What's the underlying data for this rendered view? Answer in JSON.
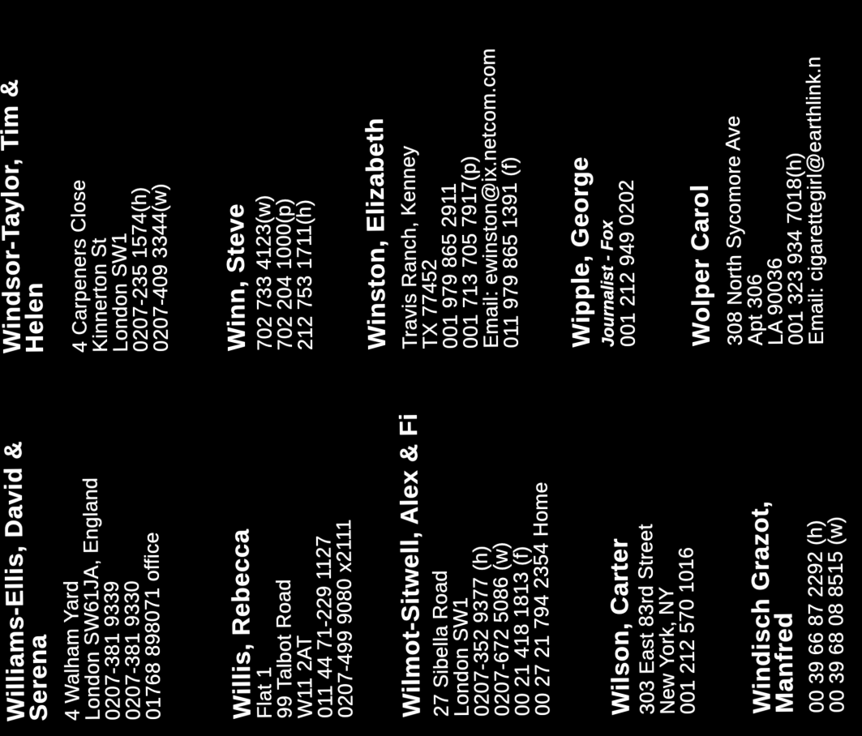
{
  "page": {
    "description": "Scanned address book page, white text on black, rotated 90 degrees counter-clockwise",
    "background_color": "#000000",
    "text_color": "#ffffff",
    "rotation_degrees": -90
  },
  "contacts": [
    {
      "name_line1": "Williams-Ellis, David &",
      "name_line2": "Serena",
      "details": [
        "4 Walham Yard",
        "London SW61JA, England",
        "0207-381 9339",
        "0207-381 9330",
        "01768 898071 office"
      ]
    },
    {
      "name_line1": "Willis, Rebecca",
      "name_line2": "",
      "details": [
        "Flat 1",
        "99 Talbot Road",
        "W11 2AT",
        "011 44 71-229 1127",
        "0207-499 9080 x2111"
      ]
    },
    {
      "name_line1": "Wilmot-Sitwell, Alex & Fi",
      "name_line2": "",
      "details": [
        "27 Sibella Road",
        "London SW1",
        "0207-352 9377 (h)",
        "0207-672 5086 (w)",
        "00 21 418 1813 (f)",
        "00 27 21 794 2354 Home"
      ]
    },
    {
      "name_line1": "Wilson, Carter",
      "name_line2": "",
      "details": [
        "303 East 83rd Street",
        "New York, NY",
        "001 212 570 1016"
      ]
    },
    {
      "name_line1": "Windisch Grazot,",
      "name_line2": "Manfred",
      "details": [
        "00 39 66 87 2292 (h)",
        "00 39 68 08 8515 (w)"
      ]
    },
    {
      "name_line1": "Windsor-Taylor, Tim &",
      "name_line2": "Helen",
      "details": [
        "4 Carpeners Close",
        "Kinnerton St",
        "London SW1",
        "0207-235 1574(h)",
        "0207-409 3344(w)"
      ]
    },
    {
      "name_line1": "Winn, Steve",
      "name_line2": "",
      "details": [
        "702 733 4123(w)",
        "702 204 1000(p)",
        "212 753 1711(h)"
      ]
    },
    {
      "name_line1": "Winston, Elizabeth",
      "name_line2": "",
      "details": [
        "Travis Ranch, Kenney",
        "TX 77452",
        "001 979 865 2911",
        "001 713 705 7917(p)",
        "Email: ewinston@ix.netcom.com",
        "011 979 865 1391 (f)"
      ]
    },
    {
      "name_line1": "Wipple, George",
      "name_line2": "",
      "subtitle": "Journalist - Fox",
      "details": [
        "001 212 949 0202"
      ]
    },
    {
      "name_line1": "Wolper Carol",
      "name_line2": "",
      "details": [
        "308 North Sycomore Ave",
        "Apt 306",
        "LA 90036",
        "001 323 934 7018(h)",
        "Email: cigarettegirl@earthlink.n"
      ]
    }
  ]
}
